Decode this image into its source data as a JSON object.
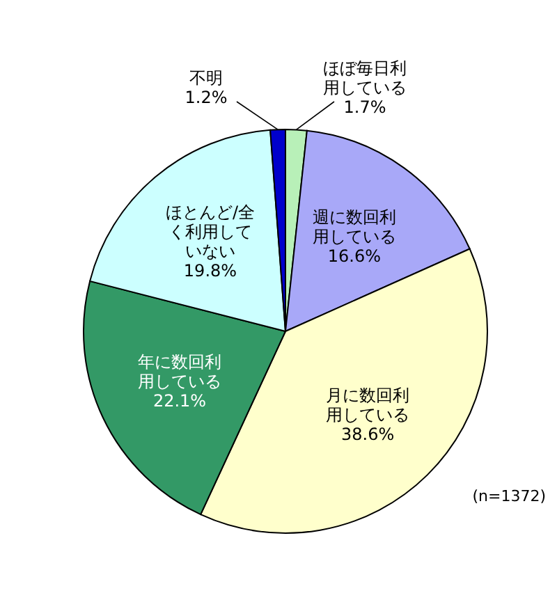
{
  "chart_data": {
    "type": "pie",
    "categories": [
      "ほぼ毎日利用している",
      "週に数回利用している",
      "月に数回利用している",
      "年に数回利用している",
      "ほとんど/全く利用していない",
      "不明"
    ],
    "values": [
      1.7,
      16.6,
      38.6,
      22.1,
      19.8,
      1.2
    ],
    "colors": [
      "#b8f0b8",
      "#a8a8f8",
      "#ffffcc",
      "#339966",
      "#ccffff",
      "#0000cc"
    ],
    "value_labels": [
      "1.7%",
      "16.6%",
      "38.6%",
      "22.1%",
      "19.8%",
      "1.2%"
    ],
    "annotations": [
      "(n=1372)"
    ]
  }
}
